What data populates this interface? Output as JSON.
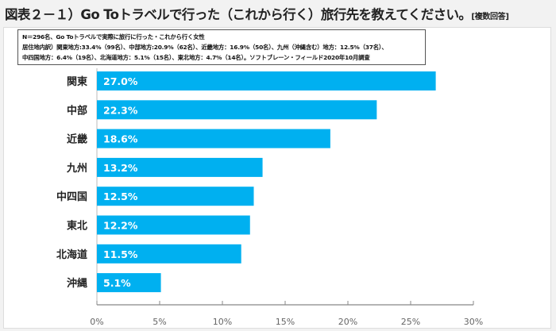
{
  "title": "図表２－１）Go Toトラベルで行った（これから行く）旅行先を教えてください。",
  "title_suffix": "[複数回答]",
  "note": [
    "N＝296名、Go Toトラベルで実際に旅行に行った・これから行く女性",
    "居住地内訳）関東地方:33.4%（99名）、中部地方:20.9%（62名）、近畿地方：16.9%（50名）、九州（沖縄含む）地方：12.5%（37名）、",
    "中四国地方：6.4%（19名）、北海道地方：5.1%（15名）、東北地方：4.7%（14名）。ソフトブレーン・フィールド2020年10月調査"
  ],
  "chart_data": {
    "type": "bar",
    "orientation": "horizontal",
    "categories": [
      "関東",
      "中部",
      "近畿",
      "九州",
      "中四国",
      "東北",
      "北海道",
      "沖縄"
    ],
    "values": [
      27.0,
      22.3,
      18.6,
      13.2,
      12.5,
      12.2,
      11.5,
      5.1
    ],
    "value_labels": [
      "27.0%",
      "22.3%",
      "18.6%",
      "13.2%",
      "12.5%",
      "12.2%",
      "11.5%",
      "5.1%"
    ],
    "xlim": [
      0,
      30
    ],
    "xticks": [
      "0%",
      "5%",
      "10%",
      "15%",
      "20%",
      "25%",
      "30%"
    ],
    "grid": false,
    "bar_color": "#00b0f0"
  }
}
